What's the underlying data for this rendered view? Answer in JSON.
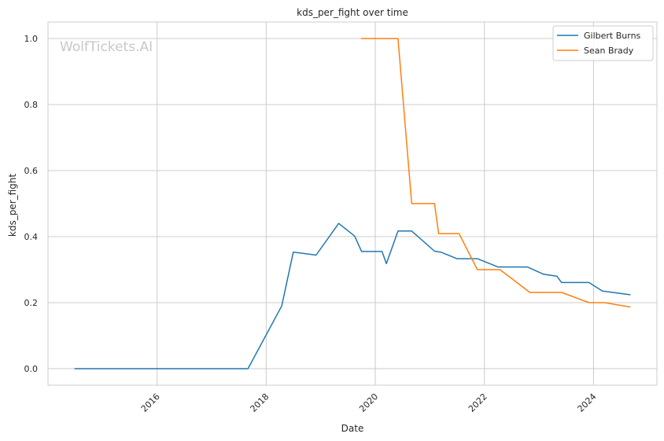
{
  "chart_data": {
    "type": "line",
    "title": "kds_per_fight over time",
    "xlabel": "Date",
    "ylabel": "kds_per_fight",
    "watermark": "WolfTickets.AI",
    "xlim": [
      "2014-01-01",
      "2025-03-01"
    ],
    "ylim": [
      -0.05,
      1.05
    ],
    "x_ticks": [
      "2016",
      "2018",
      "2020",
      "2022",
      "2024"
    ],
    "y_ticks": [
      "0.0",
      "0.2",
      "0.4",
      "0.6",
      "0.8",
      "1.0"
    ],
    "grid": true,
    "legend_position": "top-right",
    "series": [
      {
        "name": "Gilbert Burns",
        "color": "#1f77b4",
        "points": [
          [
            "2014-07-01",
            0.0
          ],
          [
            "2017-09-01",
            0.0
          ],
          [
            "2018-04-15",
            0.19
          ],
          [
            "2018-07-01",
            0.353
          ],
          [
            "2018-12-01",
            0.344
          ],
          [
            "2019-05-01",
            0.44
          ],
          [
            "2019-08-15",
            0.402
          ],
          [
            "2019-10-01",
            0.355
          ],
          [
            "2020-02-15",
            0.355
          ],
          [
            "2020-03-15",
            0.318
          ],
          [
            "2020-06-01",
            0.417
          ],
          [
            "2020-09-01",
            0.417
          ],
          [
            "2021-02-01",
            0.356
          ],
          [
            "2021-03-15",
            0.353
          ],
          [
            "2021-07-01",
            0.333
          ],
          [
            "2021-11-15",
            0.333
          ],
          [
            "2022-04-01",
            0.308
          ],
          [
            "2022-10-15",
            0.308
          ],
          [
            "2023-02-01",
            0.286
          ],
          [
            "2023-05-01",
            0.28
          ],
          [
            "2023-06-01",
            0.261
          ],
          [
            "2023-12-01",
            0.261
          ],
          [
            "2024-03-01",
            0.235
          ],
          [
            "2024-09-01",
            0.224
          ]
        ]
      },
      {
        "name": "Sean Brady",
        "color": "#ff7f0e",
        "points": [
          [
            "2019-10-01",
            1.0
          ],
          [
            "2020-06-01",
            1.0
          ],
          [
            "2020-09-01",
            0.5
          ],
          [
            "2021-02-01",
            0.5
          ],
          [
            "2021-03-01",
            0.409
          ],
          [
            "2021-07-15",
            0.409
          ],
          [
            "2021-11-15",
            0.3
          ],
          [
            "2022-04-15",
            0.3
          ],
          [
            "2022-11-01",
            0.231
          ],
          [
            "2023-06-01",
            0.231
          ],
          [
            "2023-12-01",
            0.2
          ],
          [
            "2024-03-15",
            0.2
          ],
          [
            "2024-09-01",
            0.187
          ]
        ]
      }
    ]
  }
}
